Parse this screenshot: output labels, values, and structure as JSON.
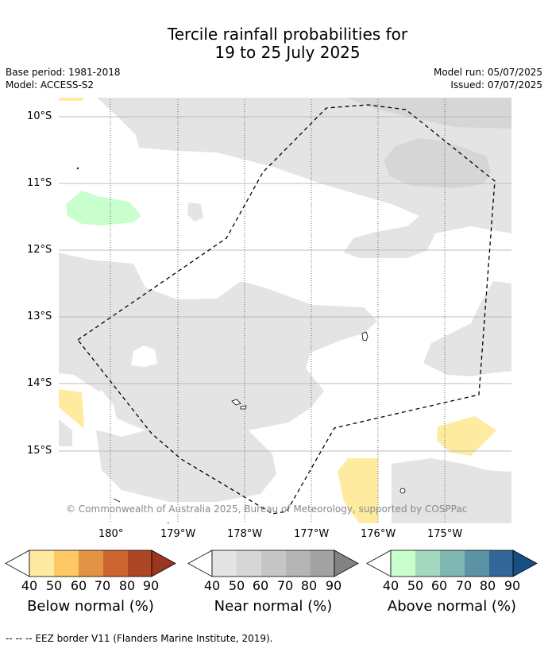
{
  "title": {
    "line1": "Tercile rainfall probabilities for",
    "line2": "19 to 25 July 2025"
  },
  "meta": {
    "base_period": "Base period: 1981-2018",
    "model": "Model: ACCESS-S2",
    "model_run": "Model run: 05/07/2025",
    "issued": "Issued: 07/07/2025"
  },
  "map": {
    "lat_labels": [
      "10°S",
      "11°S",
      "12°S",
      "13°S",
      "14°S",
      "15°S"
    ],
    "lon_labels": [
      "180°",
      "179°W",
      "178°W",
      "177°W",
      "176°W",
      "175°W"
    ],
    "credit": "© Commonwealth of Australia 2025, Bureau of Meteorology, supported by COSPPac",
    "colors": {
      "near_40": "#e4e4e4",
      "near_50": "#d6d6d6",
      "below_40": "#ffeb9f",
      "above_40": "#c8ffcc",
      "eez_border": "#000000"
    }
  },
  "colorbars": [
    {
      "title": "Below normal (%)",
      "ticks": [
        "40",
        "50",
        "60",
        "70",
        "80",
        "90"
      ],
      "colors": [
        "#ffeb9f",
        "#fec965",
        "#e29444",
        "#cd6531",
        "#ac4624",
        "#9c3520"
      ]
    },
    {
      "title": "Near normal (%)",
      "ticks": [
        "40",
        "50",
        "60",
        "70",
        "80",
        "90"
      ],
      "colors": [
        "#e4e4e4",
        "#d6d6d6",
        "#c6c6c6",
        "#b5b5b5",
        "#a2a2a2",
        "#828282"
      ]
    },
    {
      "title": "Above normal (%)",
      "ticks": [
        "40",
        "50",
        "60",
        "70",
        "80",
        "90"
      ],
      "colors": [
        "#c8ffcc",
        "#a2d8bd",
        "#7eb7b2",
        "#5c93a4",
        "#31679a",
        "#174f85"
      ]
    }
  ],
  "footnote": "--  --  -- EEZ border V11 (Flanders Marine Institute, 2019)."
}
